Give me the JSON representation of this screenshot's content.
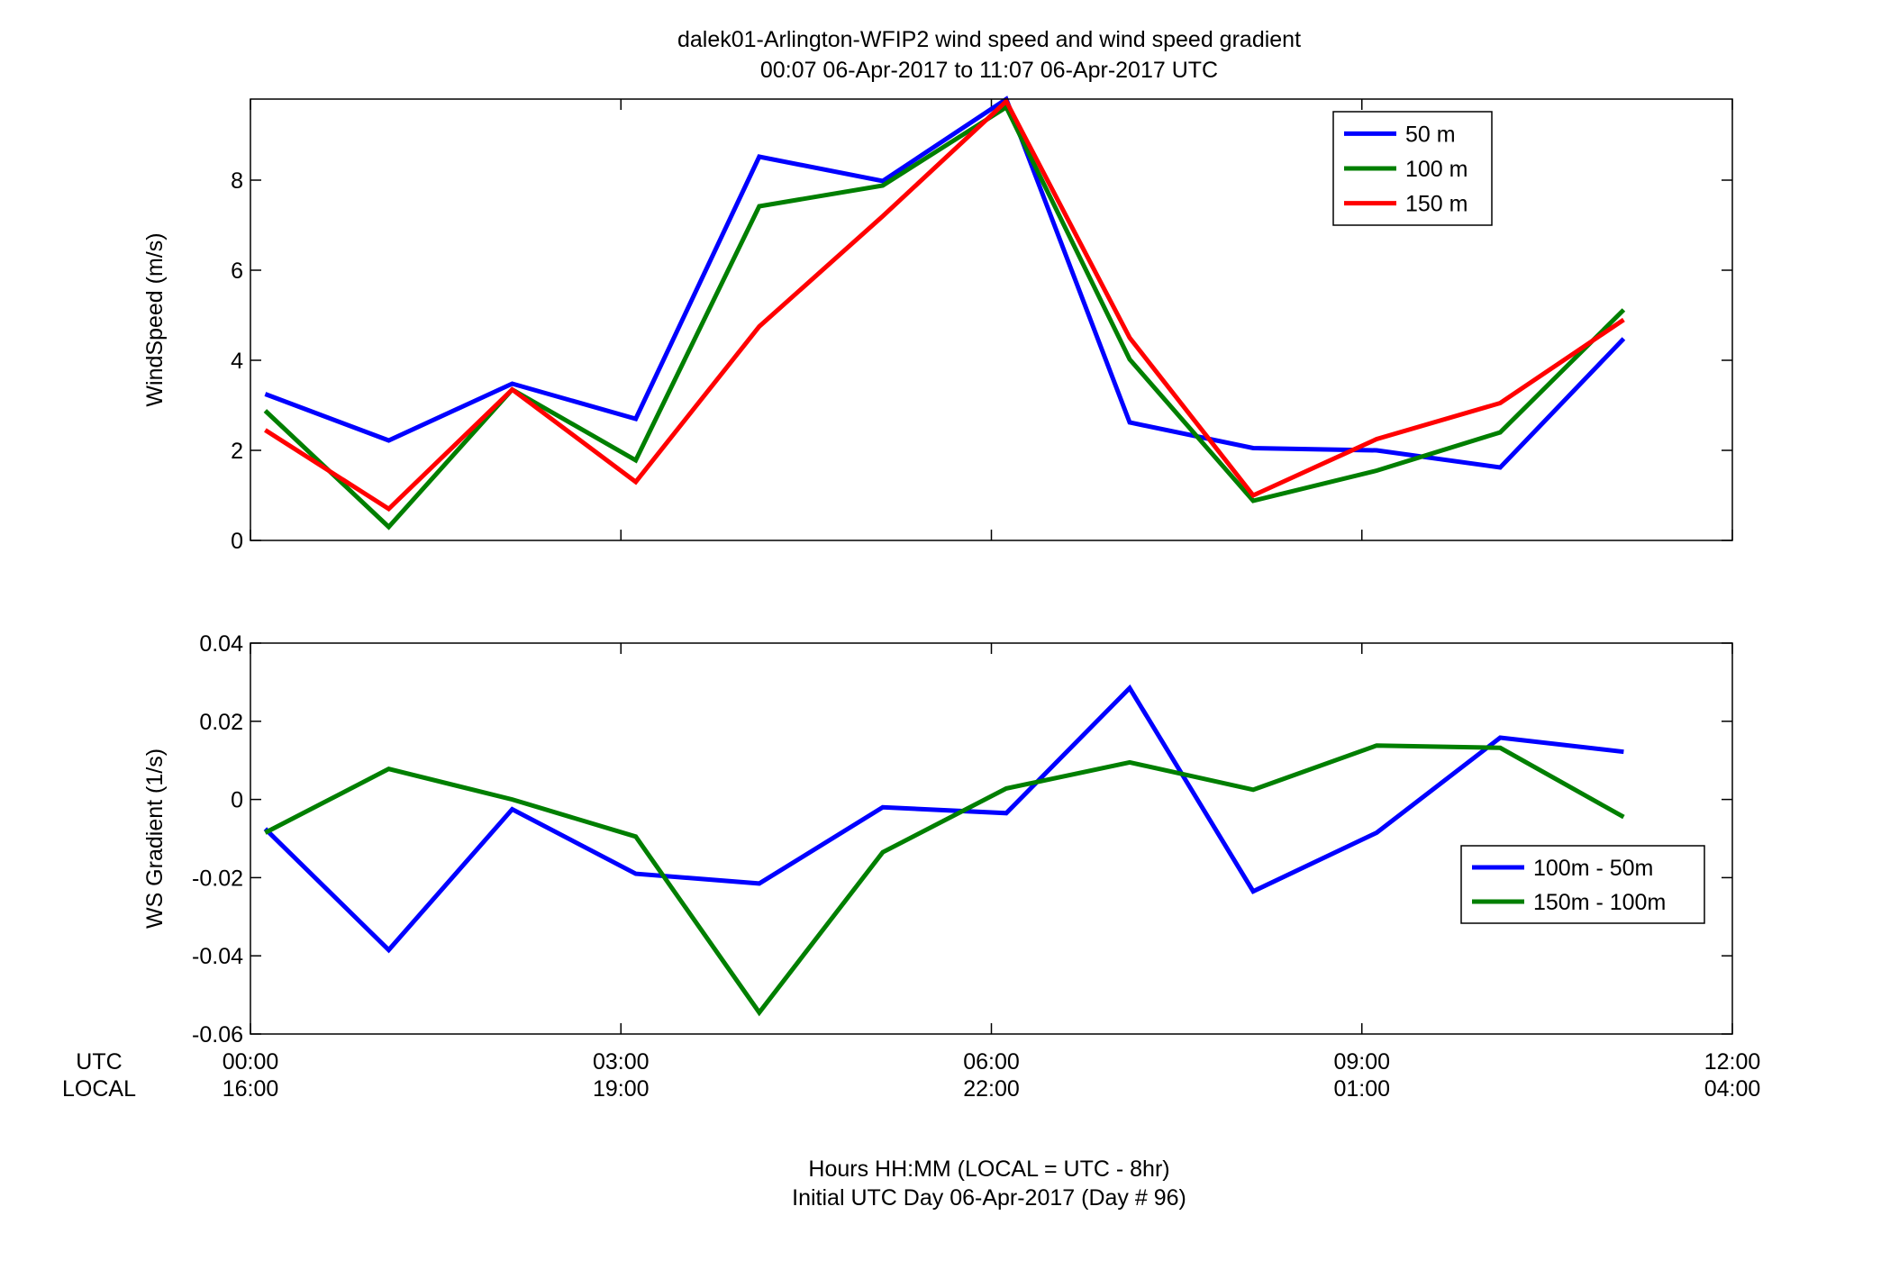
{
  "figure": {
    "title_line1": "dalek01-Arlington-WFIP2  wind speed and wind speed gradient",
    "title_line2": "00:07 06-Apr-2017 to 11:07 06-Apr-2017  UTC",
    "xlabel_line1": "Hours HH:MM  (LOCAL = UTC - 8hr)",
    "xlabel_line2": "Initial UTC Day 06-Apr-2017 (Day # 96)",
    "utc_row_label": "UTC",
    "local_row_label": "LOCAL",
    "utc_ticks": [
      "00:00",
      "03:00",
      "06:00",
      "09:00",
      "12:00"
    ],
    "local_ticks": [
      "16:00",
      "19:00",
      "22:00",
      "01:00",
      "04:00"
    ]
  },
  "chart_data": [
    {
      "type": "line",
      "ylabel": "WindSpeed (m/s)",
      "xlim": [
        0,
        12
      ],
      "ylim": [
        0,
        9.8
      ],
      "yticks": [
        0,
        2,
        4,
        6,
        8
      ],
      "ytick_labels": [
        "0",
        "2",
        "4",
        "6",
        "8"
      ],
      "x": [
        0.12,
        1.12,
        2.12,
        3.12,
        4.12,
        5.12,
        6.12,
        7.12,
        8.12,
        9.12,
        10.12,
        11.12
      ],
      "legend_position": "top-right",
      "series": [
        {
          "name": "50 m",
          "color": "#0000ff",
          "values": [
            3.25,
            2.22,
            3.48,
            2.7,
            8.52,
            7.98,
            9.8,
            2.62,
            2.05,
            2.0,
            1.62,
            4.48
          ]
        },
        {
          "name": "100 m",
          "color": "#007f00",
          "values": [
            2.88,
            0.3,
            3.35,
            1.78,
            7.42,
            7.88,
            9.62,
            4.02,
            0.88,
            1.55,
            2.4,
            5.12
          ]
        },
        {
          "name": "150 m",
          "color": "#ff0000",
          "values": [
            2.45,
            0.7,
            3.35,
            1.3,
            4.75,
            7.2,
            9.75,
            4.5,
            1.0,
            2.25,
            3.05,
            4.9
          ]
        }
      ]
    },
    {
      "type": "line",
      "ylabel": "WS Gradient (1/s)",
      "xlim": [
        0,
        12
      ],
      "ylim": [
        -0.06,
        0.04
      ],
      "yticks": [
        -0.06,
        -0.04,
        -0.02,
        0,
        0.02,
        0.04
      ],
      "ytick_labels": [
        "-0.06",
        "-0.04",
        "-0.02",
        "0",
        "0.02",
        "0.04"
      ],
      "x": [
        0.12,
        1.12,
        2.12,
        3.12,
        4.12,
        5.12,
        6.12,
        7.12,
        8.12,
        9.12,
        10.12,
        11.12
      ],
      "legend_position": "right",
      "series": [
        {
          "name": "100m - 50m",
          "color": "#0000ff",
          "values": [
            -0.0075,
            -0.0385,
            -0.0025,
            -0.019,
            -0.0215,
            -0.002,
            -0.0035,
            0.0285,
            -0.0235,
            -0.0085,
            0.0158,
            0.0122
          ]
        },
        {
          "name": "150m - 100m",
          "color": "#007f00",
          "values": [
            -0.0085,
            0.0078,
            0.0,
            -0.0095,
            -0.0545,
            -0.0135,
            0.0028,
            0.0095,
            0.0025,
            0.0138,
            0.0132,
            -0.0045
          ]
        }
      ]
    }
  ]
}
